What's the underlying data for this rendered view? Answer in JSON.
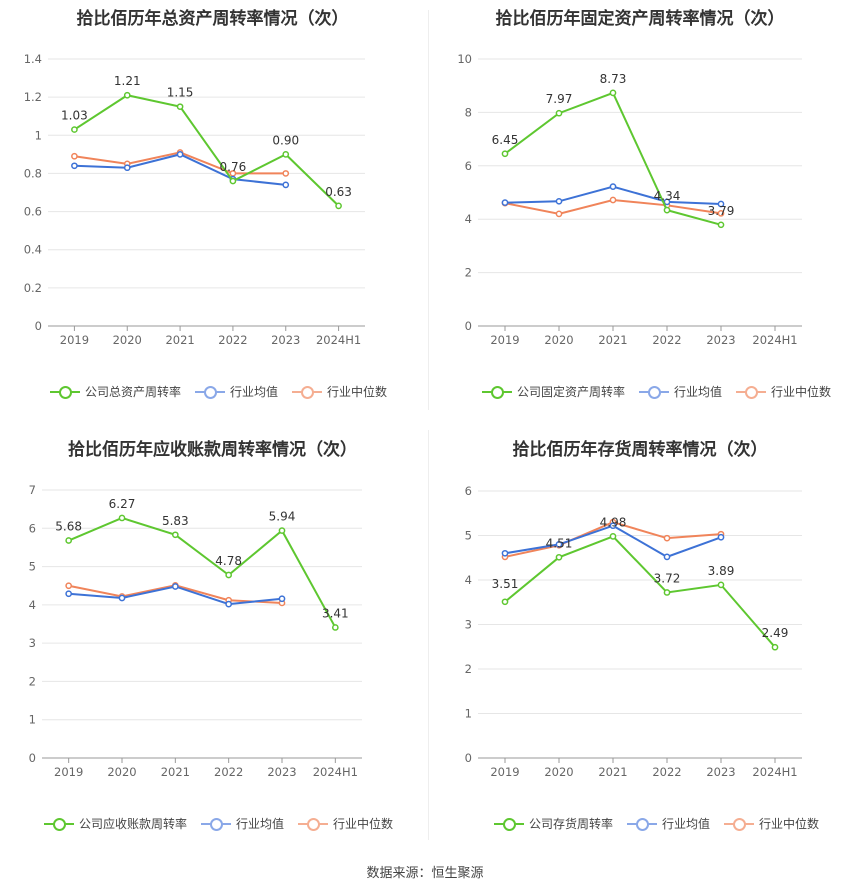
{
  "source": "数据来源：恒生聚源",
  "colors": {
    "company": "#5ec730",
    "avg": "#3d72d6",
    "median": "#f0845a",
    "grid": "#e6e6e6",
    "axis": "#999999"
  },
  "legend_common": {
    "avg": "行业均值",
    "median": "行业中位数"
  },
  "chart_data": [
    {
      "type": "line",
      "title": "拾比佰历年总资产周转率情况（次）",
      "categories": [
        "2019",
        "2020",
        "2021",
        "2022",
        "2023",
        "2024H1"
      ],
      "ylim": [
        0,
        1.4
      ],
      "yticks": [
        "0",
        "0.2",
        "0.4",
        "0.6",
        "0.8",
        "1",
        "1.2",
        "1.4"
      ],
      "series": [
        {
          "name": "公司总资产周转率",
          "role": "company",
          "values": [
            1.03,
            1.21,
            1.15,
            0.76,
            0.9,
            0.63
          ],
          "labels": [
            "1.03",
            "1.21",
            "1.15",
            "0.76",
            "0.90",
            "0.63"
          ]
        },
        {
          "name": "行业均值",
          "role": "avg",
          "values": [
            0.84,
            0.83,
            0.9,
            0.77,
            0.74,
            null
          ]
        },
        {
          "name": "行业中位数",
          "role": "median",
          "values": [
            0.89,
            0.85,
            0.91,
            0.8,
            0.8,
            null
          ]
        }
      ]
    },
    {
      "type": "line",
      "title": "拾比佰历年固定资产周转率情况（次）",
      "categories": [
        "2019",
        "2020",
        "2021",
        "2022",
        "2023",
        "2024H1"
      ],
      "ylim": [
        0,
        10
      ],
      "yticks": [
        "0",
        "2",
        "4",
        "6",
        "8",
        "10"
      ],
      "series": [
        {
          "name": "公司固定资产周转率",
          "role": "company",
          "values": [
            6.45,
            7.97,
            8.73,
            4.34,
            3.79,
            null
          ],
          "labels": [
            "6.45",
            "7.97",
            "8.73",
            "4.34",
            "3.79",
            ""
          ]
        },
        {
          "name": "行业均值",
          "role": "avg",
          "values": [
            4.62,
            4.67,
            5.22,
            4.65,
            4.57,
            null
          ]
        },
        {
          "name": "行业中位数",
          "role": "median",
          "values": [
            4.6,
            4.2,
            4.72,
            4.52,
            4.22,
            null
          ]
        }
      ]
    },
    {
      "type": "line",
      "title": "拾比佰历年应收账款周转率情况（次）",
      "categories": [
        "2019",
        "2020",
        "2021",
        "2022",
        "2023",
        "2024H1"
      ],
      "ylim": [
        0,
        7
      ],
      "yticks": [
        "0",
        "1",
        "2",
        "3",
        "4",
        "5",
        "6",
        "7"
      ],
      "series": [
        {
          "name": "公司应收账款周转率",
          "role": "company",
          "values": [
            5.68,
            6.27,
            5.83,
            4.78,
            5.94,
            3.41
          ],
          "labels": [
            "5.68",
            "6.27",
            "5.83",
            "4.78",
            "5.94",
            "3.41"
          ]
        },
        {
          "name": "行业均值",
          "role": "avg",
          "values": [
            4.29,
            4.18,
            4.48,
            4.02,
            4.16,
            null
          ]
        },
        {
          "name": "行业中位数",
          "role": "median",
          "values": [
            4.5,
            4.22,
            4.51,
            4.12,
            4.05,
            null
          ]
        }
      ]
    },
    {
      "type": "line",
      "title": "拾比佰历年存货周转率情况（次）",
      "categories": [
        "2019",
        "2020",
        "2021",
        "2022",
        "2023",
        "2024H1"
      ],
      "ylim": [
        0,
        6
      ],
      "yticks": [
        "0",
        "1",
        "2",
        "3",
        "4",
        "5",
        "6"
      ],
      "series": [
        {
          "name": "公司存货周转率",
          "role": "company",
          "values": [
            3.51,
            4.51,
            4.98,
            3.72,
            3.89,
            2.49
          ],
          "labels": [
            "3.51",
            "4.51",
            "4.98",
            "3.72",
            "3.89",
            "2.49"
          ]
        },
        {
          "name": "行业均值",
          "role": "avg",
          "values": [
            4.6,
            4.8,
            5.22,
            4.52,
            4.96,
            null
          ]
        },
        {
          "name": "行业中位数",
          "role": "median",
          "values": [
            4.52,
            4.78,
            5.3,
            4.94,
            5.03,
            null
          ]
        }
      ]
    }
  ]
}
